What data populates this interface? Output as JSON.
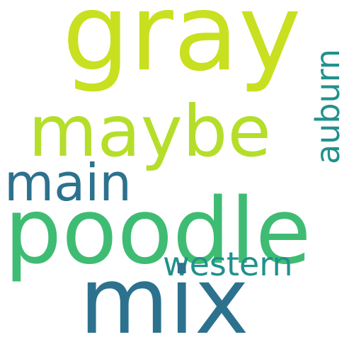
{
  "words": [
    {
      "id": "gray",
      "text": "gray",
      "color": "#c8e020"
    },
    {
      "id": "maybe",
      "text": "maybe",
      "color": "#b5de2b"
    },
    {
      "id": "poodle",
      "text": "poodle",
      "color": "#3fbc73"
    },
    {
      "id": "main",
      "text": "main",
      "color": "#2c728e"
    },
    {
      "id": "mix",
      "text": "mix",
      "color": "#2c728e"
    },
    {
      "id": "western",
      "text": "western",
      "color": "#21918c"
    },
    {
      "id": "auburn",
      "text": "auburn",
      "color": "#21918c"
    }
  ]
}
